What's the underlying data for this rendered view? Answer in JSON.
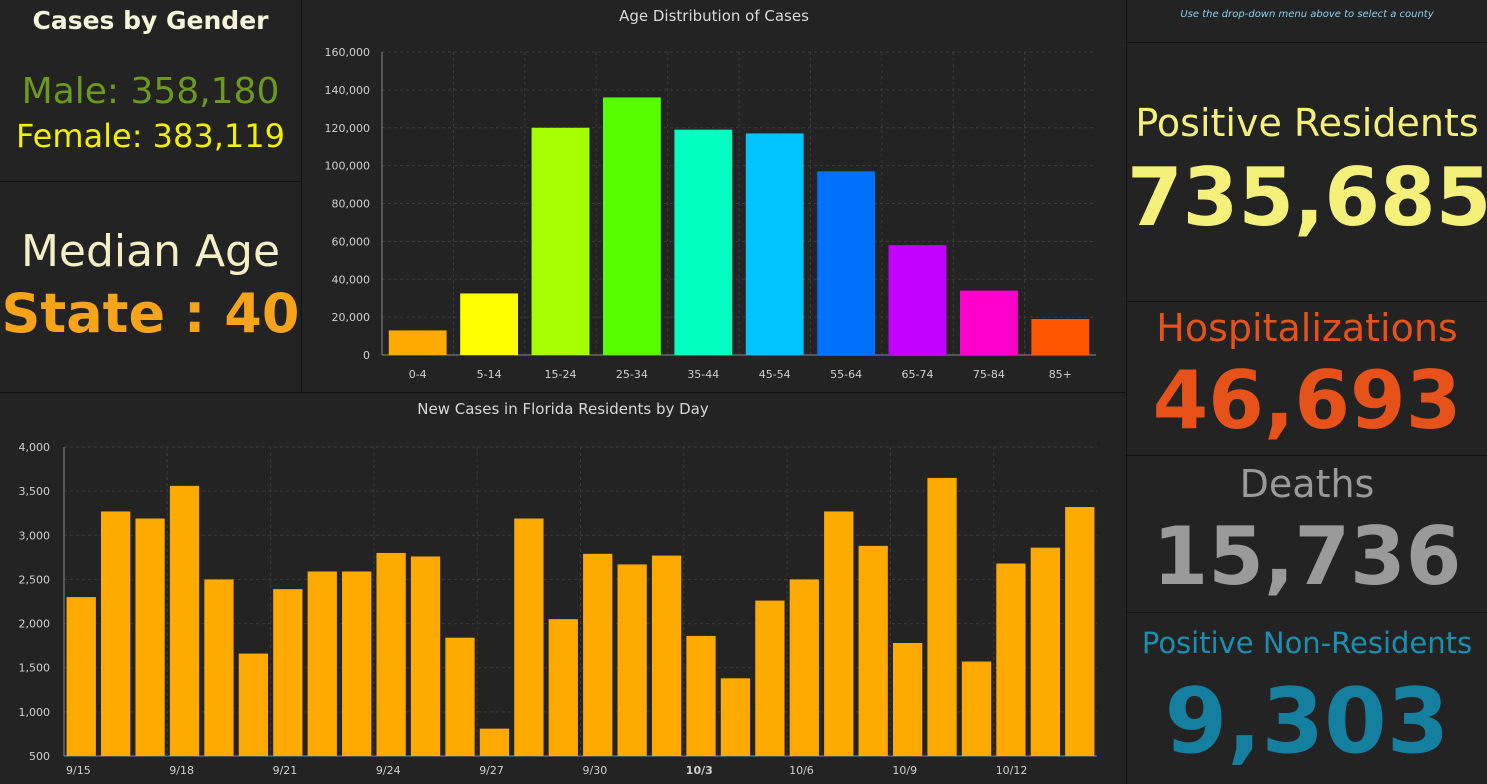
{
  "gender": {
    "title": "Cases by Gender",
    "male_label": "Male: 358,180",
    "female_label": "Female: 383,119"
  },
  "median": {
    "title": "Median Age",
    "state_label": "State : 40"
  },
  "hint": "Use the drop-down menu above to select a county",
  "positive": {
    "label": "Positive Residents",
    "value": "735,685"
  },
  "hospitalizations": {
    "label": "Hospitalizations",
    "value": "46,693"
  },
  "deaths": {
    "label": "Deaths",
    "value": "15,736"
  },
  "non_residents": {
    "label": "Positive Non-Residents",
    "value": "9,303"
  },
  "colors": {
    "male": "#6b9a1f",
    "female": "#f0f000",
    "median_state": "#f7a41b",
    "positive": "#f5f079",
    "hospitalizations": "#e6521a",
    "deaths": "#9a9a9a",
    "non_residents": "#157f9f",
    "daily_bar": "#ffaa00"
  },
  "chart_data": [
    {
      "type": "bar",
      "title": "Age Distribution of Cases",
      "categories": [
        "0-4",
        "5-14",
        "15-24",
        "25-34",
        "35-44",
        "45-54",
        "55-64",
        "65-74",
        "75-84",
        "85+"
      ],
      "values": [
        13000,
        32500,
        120000,
        136000,
        119000,
        117000,
        97000,
        58000,
        34000,
        19000
      ],
      "colors": [
        "#ffaa00",
        "#ffff00",
        "#a6ff00",
        "#55ff00",
        "#00ffc0",
        "#00c3ff",
        "#0070ff",
        "#c300ff",
        "#ff00cc",
        "#ff5500"
      ],
      "y_ticks": [
        "0",
        "20,000",
        "40,000",
        "60,000",
        "80,000",
        "100,000",
        "120,000",
        "140,000",
        "160,000"
      ],
      "ylim": [
        0,
        160000
      ],
      "grid": true
    },
    {
      "type": "bar",
      "title": "New Cases in Florida Residents by Day",
      "x_labels": [
        "9/15",
        "9/18",
        "9/21",
        "9/24",
        "9/27",
        "9/30",
        "10/3",
        "10/6",
        "10/9",
        "10/12"
      ],
      "dates": [
        "9/15",
        "9/16",
        "9/17",
        "9/18",
        "9/19",
        "9/20",
        "9/21",
        "9/22",
        "9/23",
        "9/24",
        "9/25",
        "9/26",
        "9/27",
        "9/28",
        "9/29",
        "9/30",
        "10/1",
        "10/2",
        "10/3",
        "10/4",
        "10/5",
        "10/6",
        "10/7",
        "10/8",
        "10/9",
        "10/10",
        "10/11",
        "10/12",
        "10/13",
        "10/14"
      ],
      "values": [
        2300,
        3270,
        3190,
        3560,
        2500,
        1660,
        2390,
        2590,
        2590,
        2800,
        2760,
        1840,
        810,
        3190,
        2050,
        2790,
        2670,
        2770,
        1860,
        1380,
        2260,
        2500,
        3270,
        2880,
        1780,
        3650,
        1570,
        2680,
        2860,
        3320
      ],
      "y_ticks": [
        "500",
        "1,000",
        "1,500",
        "2,000",
        "2,500",
        "3,000",
        "3,500",
        "4,000"
      ],
      "ylim": [
        500,
        4000
      ],
      "grid": true
    }
  ]
}
